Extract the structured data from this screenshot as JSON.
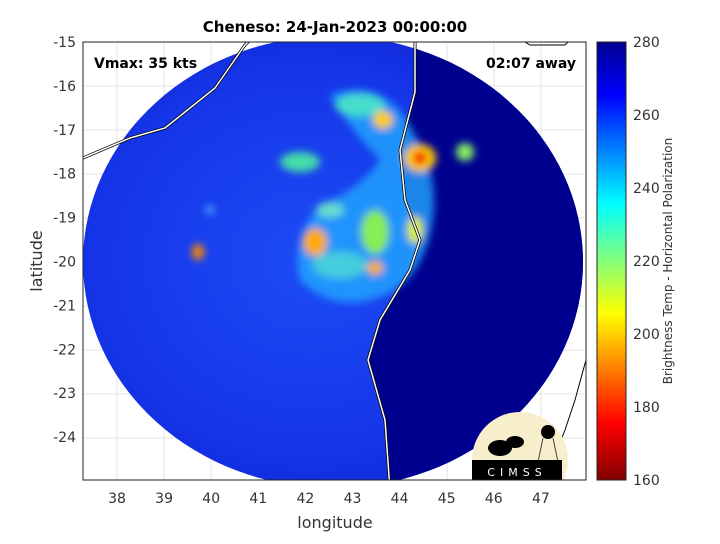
{
  "title": "Cheneso: 24-Jan-2023 00:00:00",
  "vmax_label": "Vmax: 35 kts",
  "time_away_label": "02:07 away",
  "xlabel": "longitude",
  "ylabel": "latitude",
  "xticks": [
    "38",
    "39",
    "40",
    "41",
    "42",
    "43",
    "44",
    "45",
    "46",
    "47"
  ],
  "yticks": [
    "-15",
    "-16",
    "-17",
    "-18",
    "-19",
    "-20",
    "-21",
    "-22",
    "-23",
    "-24"
  ],
  "colorbar": {
    "label": "Brightness Temp - Horizontal Polarization",
    "ticks": [
      "280",
      "260",
      "240",
      "220",
      "200",
      "180",
      "160"
    ],
    "range": [
      160,
      280
    ]
  },
  "logo_text": "CIMSS",
  "colors": {
    "land": "#00008f",
    "ocean": "#1a3cf0",
    "coast": "#ffffff"
  }
}
